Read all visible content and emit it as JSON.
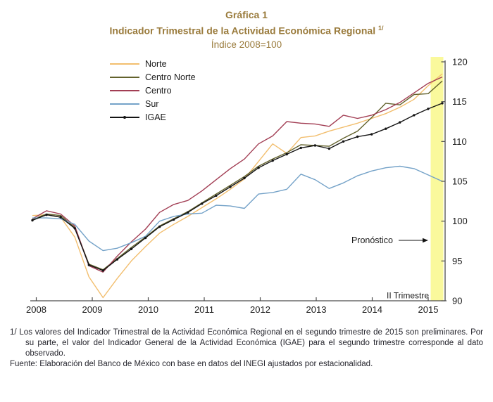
{
  "header": {
    "title": "Gráfica 1",
    "subtitle": "Indicador Trimestral de la Actividad Económica Regional",
    "subtitle_sup": "1/",
    "units": "Índice 2008=100",
    "title_color": "#9A7B3C"
  },
  "chart_data": {
    "type": "line",
    "title": "Indicador Trimestral de la Actividad Económica Regional",
    "units_label": "Índice 2008=100",
    "x": [
      "2008-T1",
      "2008-T2",
      "2008-T3",
      "2008-T4",
      "2009-T1",
      "2009-T2",
      "2009-T3",
      "2009-T4",
      "2010-T1",
      "2010-T2",
      "2010-T3",
      "2010-T4",
      "2011-T1",
      "2011-T2",
      "2011-T3",
      "2011-T4",
      "2012-T1",
      "2012-T2",
      "2012-T3",
      "2012-T4",
      "2013-T1",
      "2013-T2",
      "2013-T3",
      "2013-T4",
      "2014-T1",
      "2014-T2",
      "2014-T3",
      "2014-T4",
      "2015-T1",
      "2015-T2"
    ],
    "xticks": [
      "2008",
      "2009",
      "2010",
      "2011",
      "2012",
      "2013",
      "2014",
      "2015"
    ],
    "ylim": [
      90,
      120
    ],
    "yticks": [
      90,
      95,
      100,
      105,
      110,
      115,
      120
    ],
    "grid": false,
    "axis_side": "right",
    "legend_position": "top-left",
    "series": [
      {
        "id": "norte",
        "name": "Norte",
        "color": "#F2BE6E",
        "marker": false,
        "values": [
          100.7,
          100.8,
          100.5,
          98.0,
          93.0,
          90.4,
          92.8,
          95.0,
          96.8,
          98.5,
          99.6,
          100.6,
          101.7,
          102.8,
          104.0,
          105.3,
          107.5,
          109.7,
          108.5,
          110.5,
          110.7,
          111.3,
          111.8,
          112.3,
          112.9,
          113.5,
          114.3,
          115.3,
          117.0,
          118.5
        ]
      },
      {
        "id": "centro-norte",
        "name": "Centro Norte",
        "color": "#63622C",
        "marker": false,
        "values": [
          100.2,
          100.9,
          100.7,
          99.2,
          94.6,
          93.9,
          95.3,
          96.7,
          98.0,
          99.4,
          100.3,
          101.2,
          102.3,
          103.4,
          104.5,
          105.6,
          106.9,
          107.8,
          108.6,
          109.6,
          109.5,
          109.4,
          110.4,
          111.3,
          113.0,
          114.8,
          114.6,
          115.9,
          116.0,
          117.6
        ]
      },
      {
        "id": "centro",
        "name": "Centro",
        "color": "#A23E54",
        "marker": false,
        "values": [
          100.3,
          101.3,
          100.9,
          99.4,
          94.4,
          93.6,
          95.6,
          97.4,
          99.0,
          101.1,
          102.1,
          102.6,
          103.8,
          105.2,
          106.6,
          107.8,
          109.7,
          110.7,
          112.5,
          112.3,
          112.2,
          111.9,
          113.3,
          112.9,
          113.3,
          114.0,
          114.9,
          116.1,
          117.3,
          118.1
        ]
      },
      {
        "id": "sur",
        "name": "Sur",
        "color": "#74A2C8",
        "marker": false,
        "values": [
          100.4,
          100.4,
          100.3,
          99.6,
          97.5,
          96.3,
          96.6,
          97.3,
          98.1,
          100.0,
          100.6,
          100.9,
          101.0,
          102.0,
          101.9,
          101.6,
          103.4,
          103.6,
          104.0,
          105.9,
          105.2,
          104.1,
          104.8,
          105.7,
          106.3,
          106.7,
          106.9,
          106.6,
          105.8,
          105.0
        ]
      },
      {
        "id": "igae",
        "name": "IGAE",
        "color": "#141414",
        "marker": true,
        "values": [
          100.1,
          100.8,
          100.5,
          99.1,
          94.5,
          93.8,
          95.2,
          96.5,
          97.9,
          99.3,
          100.2,
          101.1,
          102.2,
          103.2,
          104.3,
          105.4,
          106.7,
          107.6,
          108.4,
          109.2,
          109.5,
          109.1,
          110.0,
          110.6,
          110.9,
          111.6,
          112.4,
          113.3,
          114.1,
          114.8
        ]
      }
    ],
    "forecast": {
      "label": "Pronóstico",
      "quarter_label": "II Trimestre",
      "band_color": "#FAF99C"
    }
  },
  "footnotes": {
    "note_marker": "1/",
    "note_text": "Los valores del Indicador Trimestral de la Actividad Económica Regional en el segundo trimestre de 2015 son preliminares. Por su parte, el valor del Indicador General de la Actividad Económica (IGAE) para el segundo trimestre corresponde al dato observado.",
    "source": "Fuente: Elaboración del Banco de México con base en datos del INEGI ajustados por estacionalidad."
  }
}
